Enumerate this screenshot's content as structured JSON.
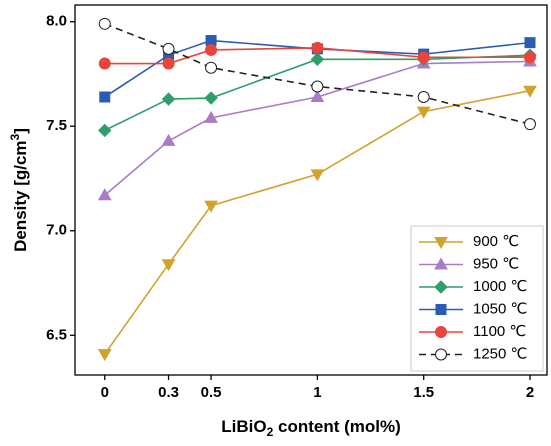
{
  "chart_data": {
    "type": "line",
    "x_label": [
      "LiBiO",
      "2",
      " content (mol%)"
    ],
    "y_label": [
      "Density [g/cm",
      "3",
      "]"
    ],
    "x": [
      0,
      0.3,
      0.5,
      1,
      1.5,
      2
    ],
    "xlim": [
      -0.14,
      2.08
    ],
    "xticks": [
      0,
      0.3,
      0.5,
      1,
      1.5,
      2
    ],
    "ylim": [
      6.31,
      8.08
    ],
    "yticks": [
      6.5,
      {
        "value": 7,
        "label": "7.0"
      },
      7.5,
      {
        "value": 8,
        "label": "8.0"
      }
    ],
    "legend": "lower right",
    "series": [
      {
        "name": "900 ℃",
        "color": "#d1a22c",
        "marker": "triangle-down",
        "dashed": false,
        "values": [
          6.41,
          6.84,
          7.12,
          7.27,
          7.57,
          7.67
        ]
      },
      {
        "name": "950 ℃",
        "color": "#a97cc8",
        "marker": "triangle-up",
        "dashed": false,
        "values": [
          7.17,
          7.43,
          7.54,
          7.64,
          7.8,
          7.81
        ]
      },
      {
        "name": "1000 ℃",
        "color": "#2f9e68",
        "marker": "diamond",
        "dashed": false,
        "values": [
          7.48,
          7.63,
          7.635,
          7.82,
          7.82,
          7.84
        ]
      },
      {
        "name": "1050 ℃",
        "color": "#2a5cb3",
        "marker": "square",
        "dashed": false,
        "values": [
          7.64,
          7.84,
          7.91,
          7.87,
          7.845,
          7.9
        ]
      },
      {
        "name": "1100 ℃",
        "color": "#e8453c",
        "marker": "circle",
        "dashed": false,
        "values": [
          7.8,
          7.8,
          7.865,
          7.875,
          7.83,
          7.83
        ]
      },
      {
        "name": "1250 ℃",
        "color": "#222222",
        "marker": "open-circle",
        "dashed": true,
        "values": [
          7.99,
          7.87,
          7.78,
          7.69,
          7.64,
          7.51
        ]
      }
    ]
  }
}
